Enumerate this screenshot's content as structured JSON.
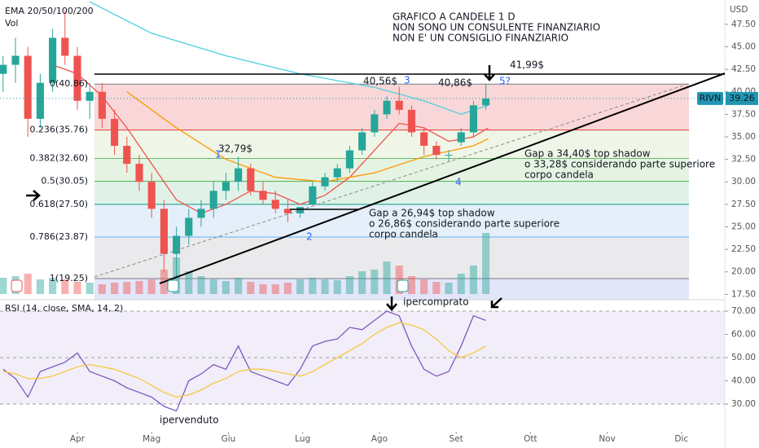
{
  "chart_data": [
    {
      "type": "candlestick",
      "legend_text": "EMA 20/50/100/200",
      "volume_label": "Vol",
      "currency": "USD",
      "title_lines": [
        "GRAFICO A CANDELE 1 D",
        "NON SONO UN CONSULENTE FINANZIARIO",
        "NON E' UN CONSIGLIO FINANZIARIO"
      ],
      "annotations": [
        "41,99$",
        "40,56$",
        "40,86$",
        "32,79$",
        "Gap a 34,40$ top shadow",
        "o 33,28$ considerando parte superiore",
        "corpo candela",
        "Gap a 26,94$ top shadow",
        "o 26,86$ considerando parte superiore",
        "corpo candela"
      ],
      "wave_labels": [
        "1",
        "2",
        "3",
        "4",
        "5?"
      ],
      "xlim": [
        -31.25,
        261.5
      ],
      "ylim": [
        16.9,
        50.2
      ],
      "yticks": [
        {
          "value": 17.5,
          "label": "17.50"
        },
        {
          "value": 20,
          "label": "20.00"
        },
        {
          "value": 22.5,
          "label": "22.50"
        },
        {
          "value": 25,
          "label": "25.00"
        },
        {
          "value": 27.5,
          "label": "27.50"
        },
        {
          "value": 30,
          "label": "30.00"
        },
        {
          "value": 32.5,
          "label": "32.50"
        },
        {
          "value": 35,
          "label": "35.00"
        },
        {
          "value": 37.5,
          "label": "37.50"
        },
        {
          "value": 40,
          "label": "40.00"
        },
        {
          "value": 42.5,
          "label": "42.50"
        },
        {
          "value": 45,
          "label": "45.00"
        },
        {
          "value": 47.5,
          "label": "47.50"
        }
      ],
      "up_color": "#26a69a",
      "down_color": "#ef5350",
      "x": [
        -30,
        -25,
        -20,
        -15,
        -10,
        -5,
        0,
        5,
        10,
        15,
        20,
        25,
        30,
        35,
        40,
        45,
        50,
        55,
        60,
        65,
        70,
        75,
        80,
        85,
        90,
        95,
        100,
        105,
        110,
        115,
        120,
        125,
        130,
        135,
        140,
        145,
        150,
        155,
        160,
        165
      ],
      "open": [
        42,
        43,
        44,
        37,
        41,
        46,
        44,
        39,
        40,
        37,
        34,
        32,
        30,
        27,
        22,
        24,
        26,
        27,
        29,
        30,
        31.5,
        29,
        28,
        27,
        26.5,
        27.5,
        29.5,
        30.5,
        31.5,
        33.5,
        35.5,
        37.5,
        39,
        38,
        35.5,
        34,
        33,
        34.4,
        35.5,
        38.5
      ],
      "high": [
        44,
        46,
        45,
        42,
        47,
        49,
        45,
        41,
        41,
        38,
        35,
        33,
        31,
        28,
        25,
        27,
        28,
        30,
        31,
        32.79,
        32,
        30,
        29,
        28,
        27,
        30,
        31,
        32,
        34,
        36,
        38,
        39.5,
        40.56,
        38.5,
        36,
        34.5,
        33.5,
        36,
        39,
        40.86
      ],
      "low": [
        40,
        41,
        35,
        36,
        40,
        43,
        38,
        37,
        36,
        33,
        31,
        29,
        26,
        20,
        19.25,
        23,
        25,
        26,
        28,
        29,
        28.5,
        27.5,
        26.5,
        25.5,
        26,
        27.5,
        29,
        30,
        31,
        33,
        35,
        37,
        37.5,
        35,
        33,
        32.5,
        32.3,
        34,
        35,
        38
      ],
      "close": [
        43,
        44,
        37,
        41,
        46,
        44,
        39,
        40,
        37,
        34,
        32,
        30,
        27,
        22,
        24,
        26,
        27,
        29,
        30,
        31.5,
        29,
        28,
        27,
        26.5,
        27.2,
        29.5,
        30.5,
        31.5,
        33.5,
        35.5,
        37.5,
        39,
        38,
        35.5,
        34,
        33,
        33,
        35.5,
        38.5,
        39.26
      ],
      "volume": [
        20,
        22,
        25,
        18,
        20,
        18,
        15,
        14,
        12,
        14,
        15,
        16,
        18,
        30,
        45,
        28,
        22,
        18,
        16,
        20,
        15,
        12,
        12,
        14,
        18,
        20,
        18,
        17,
        22,
        28,
        30,
        40,
        35,
        22,
        18,
        15,
        14,
        25,
        35,
        75
      ],
      "lines": [
        {
          "color": "#ef5350",
          "x": [
            -10,
            0,
            10,
            20,
            30,
            40,
            50,
            60,
            70,
            80,
            90,
            100,
            110,
            120,
            130,
            140,
            150,
            160,
            166
          ],
          "values": [
            43,
            42,
            39.5,
            36,
            32,
            28,
            26.5,
            27.5,
            29,
            28.7,
            27.5,
            28.5,
            30.5,
            33.5,
            36.5,
            36,
            34.5,
            35,
            36
          ]
        },
        {
          "color": "#ff9800",
          "x": [
            20,
            40,
            60,
            80,
            100,
            120,
            140,
            160,
            166
          ],
          "values": [
            40,
            36,
            32.5,
            30.5,
            30,
            31,
            32.8,
            34,
            34.8
          ]
        },
        {
          "color": "#4dd0e1",
          "x": [
            5,
            30,
            60,
            90,
            120,
            140,
            155,
            166
          ],
          "values": [
            50,
            46.5,
            44,
            42,
            40.5,
            39,
            37.5,
            38.5
          ]
        }
      ],
      "fib": {
        "levels": [
          {
            "value": 40.86,
            "label": "0(40.86)",
            "color": "#787b86",
            "fill": "#f7c9cb"
          },
          {
            "value": 35.76,
            "label": "0.236(35.76)",
            "color": "#e53935",
            "fill": "#eaf3df"
          },
          {
            "value": 32.6,
            "label": "0.382(32.60)",
            "color": "#66bb6a",
            "fill": "#dcefd9"
          },
          {
            "value": 30.05,
            "label": "0.5(30.05)",
            "color": "#4caf50",
            "fill": "#d6eee0"
          },
          {
            "value": 27.5,
            "label": "0.618(27.50)",
            "color": "#089981",
            "fill": "#dceaf7"
          },
          {
            "value": 23.87,
            "label": "0.786(23.87)",
            "color": "#64b5f6",
            "fill": "#e3e3e5"
          },
          {
            "value": 19.25,
            "label": "1(19.25)",
            "color": "#787b86",
            "fill": "#d9dcf5"
          }
        ]
      },
      "last_price": {
        "symbol": "RIVN",
        "value": 39.26,
        "color": "#2196b3"
      }
    },
    {
      "type": "line",
      "title": "RSI (14, close, SMA, 14, 2)",
      "annotations": [
        "ipercomprato",
        "ipervenduto"
      ],
      "xlim": [
        -31.25,
        261.5
      ],
      "xticks": [
        {
          "value": 0,
          "label": "Apr"
        },
        {
          "value": 30,
          "label": "Mag"
        },
        {
          "value": 61,
          "label": "Giu"
        },
        {
          "value": 91,
          "label": "Lug"
        },
        {
          "value": 122,
          "label": "Ago"
        },
        {
          "value": 153,
          "label": "Set"
        },
        {
          "value": 183,
          "label": "Ott"
        },
        {
          "value": 214,
          "label": "Nov"
        },
        {
          "value": 244,
          "label": "Dic"
        }
      ],
      "ylim": [
        18.1,
        74.9
      ],
      "yticks": [
        {
          "value": 30,
          "label": "30.00"
        },
        {
          "value": 40,
          "label": "40.00"
        },
        {
          "value": 50,
          "label": "50.00"
        },
        {
          "value": 60,
          "label": "60.00"
        },
        {
          "value": 70,
          "label": "70.00"
        }
      ],
      "bands": [
        70,
        50,
        30
      ],
      "x": [
        -30,
        -25,
        -20,
        -15,
        -10,
        -5,
        0,
        5,
        10,
        15,
        20,
        25,
        30,
        35,
        40,
        45,
        50,
        55,
        60,
        65,
        70,
        75,
        80,
        85,
        90,
        95,
        100,
        105,
        110,
        115,
        120,
        125,
        130,
        135,
        140,
        145,
        150,
        155,
        160,
        165
      ],
      "series": [
        {
          "color": "#7e57c2",
          "values": [
            45,
            41,
            33,
            44,
            46,
            48,
            52,
            44,
            42,
            40,
            37,
            35,
            33,
            29,
            27,
            40,
            43,
            47,
            45,
            55,
            44,
            42,
            40,
            38,
            45,
            55,
            57,
            58,
            63,
            62,
            66,
            70,
            68,
            55,
            45,
            42,
            44,
            55,
            68,
            66
          ]
        },
        {
          "color": "#f5c842",
          "values": [
            44,
            43,
            41,
            41,
            42,
            44,
            46,
            47,
            46,
            45,
            43,
            41,
            38,
            35,
            33,
            34,
            36,
            39,
            41,
            44,
            45,
            45,
            44,
            43,
            42,
            44,
            47,
            50,
            53,
            56,
            60,
            63,
            65,
            64,
            62,
            58,
            53,
            50,
            52,
            55
          ]
        }
      ]
    }
  ]
}
